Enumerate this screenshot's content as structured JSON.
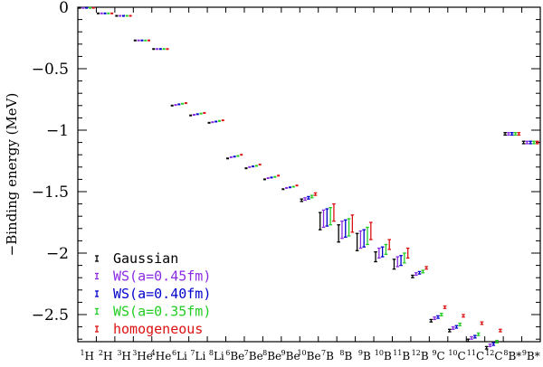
{
  "chart_data": {
    "type": "scatter",
    "title": "",
    "xlabel": "",
    "ylabel": "−Binding energy (MeV)",
    "ylim": [
      -2.78,
      0
    ],
    "yticks": [
      0,
      -0.5,
      -1,
      -1.5,
      -2,
      -2.5
    ],
    "ytick_labels": [
      "0",
      "−0.5",
      "−1",
      "−1.5",
      "−2",
      "−2.5"
    ],
    "grid": false,
    "legend_position": "lower left",
    "categories": [
      {
        "mass": "1",
        "el": "H"
      },
      {
        "mass": "2",
        "el": "H"
      },
      {
        "mass": "3",
        "el": "H"
      },
      {
        "mass": "3",
        "el": "He"
      },
      {
        "mass": "4",
        "el": "He"
      },
      {
        "mass": "6",
        "el": "Li"
      },
      {
        "mass": "7",
        "el": "Li"
      },
      {
        "mass": "8",
        "el": "Li"
      },
      {
        "mass": "6",
        "el": "Be"
      },
      {
        "mass": "7",
        "el": "Be"
      },
      {
        "mass": "8",
        "el": "Be"
      },
      {
        "mass": "9",
        "el": "Be"
      },
      {
        "mass": "10",
        "el": "Be"
      },
      {
        "mass": "7",
        "el": "B"
      },
      {
        "mass": "8",
        "el": "B"
      },
      {
        "mass": "9",
        "el": "B"
      },
      {
        "mass": "10",
        "el": "B"
      },
      {
        "mass": "11",
        "el": "B"
      },
      {
        "mass": "12",
        "el": "B"
      },
      {
        "mass": "9",
        "el": "C"
      },
      {
        "mass": "10",
        "el": "C"
      },
      {
        "mass": "11",
        "el": "C"
      },
      {
        "mass": "12",
        "el": "C"
      },
      {
        "mass": "8",
        "el": "B*"
      },
      {
        "mass": "9",
        "el": "B*"
      }
    ],
    "series": [
      {
        "name": "Gaussian",
        "color": "#000000",
        "values": [
          -0.005,
          -0.05,
          -0.07,
          -0.27,
          -0.34,
          -0.8,
          -0.88,
          -0.94,
          -1.23,
          -1.31,
          -1.4,
          -1.48,
          -1.57,
          -1.74,
          -1.84,
          -1.91,
          -2.03,
          -2.09,
          -2.19,
          -2.55,
          -2.63,
          -2.71,
          -2.77,
          -1.03,
          -1.1
        ],
        "errors": [
          0.003,
          0.003,
          0.003,
          0.003,
          0.003,
          0.005,
          0.005,
          0.005,
          0.006,
          0.006,
          0.006,
          0.006,
          0.01,
          0.07,
          0.07,
          0.07,
          0.04,
          0.04,
          0.01,
          0.01,
          0.01,
          0.01,
          0.01,
          0.01,
          0.01
        ]
      },
      {
        "name": "WS(a=0.45fm)",
        "color": "#8a2be2",
        "values": [
          -0.005,
          -0.05,
          -0.07,
          -0.27,
          -0.34,
          -0.795,
          -0.875,
          -0.935,
          -1.22,
          -1.3,
          -1.39,
          -1.47,
          -1.56,
          -1.72,
          -1.81,
          -1.89,
          -2.0,
          -2.07,
          -2.17,
          -2.53,
          -2.61,
          -2.69,
          -2.75,
          -1.03,
          -1.1
        ],
        "errors": [
          0.003,
          0.003,
          0.003,
          0.003,
          0.003,
          0.005,
          0.005,
          0.005,
          0.006,
          0.006,
          0.006,
          0.006,
          0.01,
          0.07,
          0.07,
          0.07,
          0.04,
          0.04,
          0.01,
          0.01,
          0.01,
          0.01,
          0.01,
          0.01,
          0.01
        ]
      },
      {
        "name": "WS(a=0.40fm)",
        "color": "#0000cd",
        "values": [
          -0.005,
          -0.05,
          -0.07,
          -0.27,
          -0.34,
          -0.79,
          -0.87,
          -0.93,
          -1.215,
          -1.295,
          -1.385,
          -1.465,
          -1.55,
          -1.71,
          -1.8,
          -1.88,
          -1.99,
          -2.06,
          -2.16,
          -2.52,
          -2.6,
          -2.68,
          -2.74,
          -1.03,
          -1.1
        ],
        "errors": [
          0.003,
          0.003,
          0.003,
          0.003,
          0.003,
          0.005,
          0.005,
          0.005,
          0.006,
          0.006,
          0.006,
          0.006,
          0.01,
          0.07,
          0.07,
          0.07,
          0.04,
          0.04,
          0.01,
          0.01,
          0.01,
          0.01,
          0.01,
          0.01,
          0.01
        ]
      },
      {
        "name": "WS(a=0.35fm)",
        "color": "#22cc22",
        "values": [
          -0.005,
          -0.05,
          -0.07,
          -0.27,
          -0.34,
          -0.785,
          -0.865,
          -0.925,
          -1.21,
          -1.29,
          -1.38,
          -1.46,
          -1.54,
          -1.7,
          -1.79,
          -1.86,
          -1.97,
          -2.04,
          -2.15,
          -2.5,
          -2.58,
          -2.66,
          -2.72,
          -1.03,
          -1.1
        ],
        "errors": [
          0.003,
          0.003,
          0.003,
          0.003,
          0.003,
          0.005,
          0.005,
          0.005,
          0.006,
          0.006,
          0.006,
          0.006,
          0.01,
          0.07,
          0.07,
          0.07,
          0.04,
          0.04,
          0.01,
          0.01,
          0.01,
          0.01,
          0.01,
          0.01,
          0.01
        ]
      },
      {
        "name": "homogeneous",
        "color": "#dd1111",
        "values": [
          -0.005,
          -0.05,
          -0.07,
          -0.27,
          -0.34,
          -0.78,
          -0.86,
          -0.92,
          -1.2,
          -1.28,
          -1.37,
          -1.45,
          -1.52,
          -1.67,
          -1.76,
          -1.82,
          -1.93,
          -2.0,
          -2.12,
          -2.44,
          -2.51,
          -2.57,
          -2.63,
          -1.03,
          -1.1
        ],
        "errors": [
          0.003,
          0.003,
          0.003,
          0.003,
          0.003,
          0.005,
          0.005,
          0.005,
          0.006,
          0.006,
          0.006,
          0.006,
          0.01,
          0.07,
          0.07,
          0.07,
          0.04,
          0.04,
          0.01,
          0.01,
          0.01,
          0.01,
          0.01,
          0.01,
          0.01
        ]
      }
    ]
  }
}
